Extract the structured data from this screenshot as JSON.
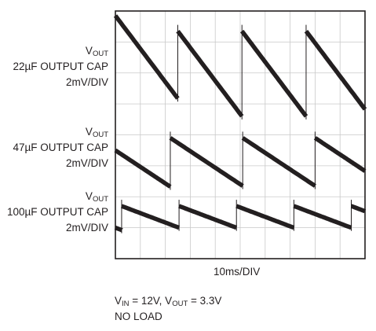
{
  "chart_data": {
    "type": "line",
    "x_label": "10ms/DIV",
    "grid": true,
    "grid_divisions": {
      "x": 10,
      "y": 8
    },
    "traces": [
      {
        "label_main": "V",
        "label_sub": "OUT",
        "label_cap": "22µF OUTPUT CAP",
        "label_scale": "2mV/DIV",
        "period_div": 2.57,
        "first_reset_div": 2.5,
        "level_high_div": 0.65,
        "level_low_div": 3.4,
        "start_level_div": 0.15
      },
      {
        "label_main": "V",
        "label_sub": "OUT",
        "label_cap": "47µF OUTPUT CAP",
        "label_scale": "2mV/DIV",
        "period_div": 2.9,
        "first_reset_div": 2.2,
        "level_high_div": 4.1,
        "level_low_div": 5.65,
        "start_level_div": 4.5
      },
      {
        "label_main": "V",
        "label_sub": "OUT",
        "label_cap": "100µF OUTPUT CAP",
        "label_scale": "2mV/DIV",
        "period_div": 2.3,
        "first_reset_div": 0.25,
        "level_high_div": 6.3,
        "level_low_div": 7.0,
        "start_level_div": 7.0
      }
    ]
  },
  "conditions": {
    "line1_a": "V",
    "line1_a_sub": "IN",
    "line1_b": " = 12V, V",
    "line1_b_sub": "OUT",
    "line1_c": " = 3.3V",
    "line2": "NO LOAD"
  }
}
